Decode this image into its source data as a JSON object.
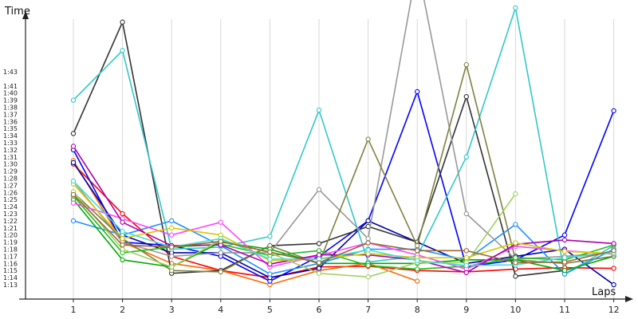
{
  "chart_data": {
    "type": "line",
    "xlabel": "Laps",
    "ylabel": "Time",
    "x": [
      1,
      2,
      3,
      4,
      5,
      6,
      7,
      8,
      9,
      10,
      11,
      12
    ],
    "y_tick_labels": [
      "1:13",
      "1:14",
      "1:15",
      "1:16",
      "1:17",
      "1:18",
      "1:19",
      "1:20",
      "1:21",
      "1:22",
      "1:23",
      "1:24",
      "1:25",
      "1:26",
      "1:27",
      "1:28",
      "1:29",
      "1:30",
      "1:31",
      "1:32",
      "1:33",
      "1:34",
      "1:35",
      "1:36",
      "1:37",
      "1:38",
      "1:39",
      "1:40",
      "1:41",
      "1:43"
    ],
    "ylim_seconds": [
      72,
      104
    ],
    "grid": {
      "vertical": true,
      "horizontal": false
    },
    "series": [
      {
        "color": "#ff0000",
        "values": [
          90,
          83,
          77,
          75,
          74,
          75.5,
          75.6,
          75,
          74.8,
          75.2,
          75.4,
          75.3
        ]
      },
      {
        "color": "#ff6600",
        "values": [
          90.5,
          79,
          76,
          75,
          73,
          75,
          76,
          73.5,
          null,
          null,
          null,
          null
        ]
      },
      {
        "color": "#0000ff",
        "values": [
          92,
          79,
          78.5,
          77,
          73.5,
          77,
          82,
          100.2,
          75.5,
          76.5,
          80,
          97.5
        ]
      },
      {
        "color": "#0000aa",
        "values": [
          90.2,
          80,
          77.5,
          77.5,
          74,
          75.3,
          82,
          79,
          76,
          77,
          78,
          73
        ]
      },
      {
        "color": "#333333",
        "values": [
          94.3,
          110,
          74.6,
          75,
          78.5,
          78.8,
          81.2,
          79,
          99.5,
          74.2,
          75,
          null
        ]
      },
      {
        "color": "#32c8c8",
        "values": [
          99,
          106,
          78,
          78.3,
          79.8,
          97.6,
          76.2,
          77,
          91,
          112,
          74.5,
          78.5
        ]
      },
      {
        "color": "#1e90ff",
        "values": [
          82,
          80,
          82,
          78.5,
          74.5,
          76,
          78,
          78,
          76.5,
          81.5,
          74.5,
          78
        ]
      },
      {
        "color": "#999999",
        "values": [
          87.6,
          79,
          77,
          77.5,
          77.5,
          86.4,
          79.5,
          118,
          83,
          76.6,
          77,
          77.5
        ]
      },
      {
        "color": "#808040",
        "values": [
          86,
          79.5,
          75,
          74.8,
          78.5,
          76,
          93.5,
          78.5,
          104,
          76.5,
          76,
          77
        ]
      },
      {
        "color": "#00aa00",
        "values": [
          85,
          76.5,
          75.5,
          79,
          78,
          76,
          76,
          76,
          76.5,
          76.5,
          75,
          77
        ]
      },
      {
        "color": "#22bb22",
        "values": [
          85.5,
          77.5,
          78.3,
          78.7,
          77.1,
          77.8,
          75.7,
          75.2,
          75.6,
          76.8,
          76.5,
          78.6
        ]
      },
      {
        "color": "#ff44ff",
        "values": [
          84.5,
          82.3,
          80,
          81.8,
          75.5,
          77.1,
          78.9,
          77.2,
          75.2,
          78.4,
          77.8,
          77.3
        ]
      },
      {
        "color": "#aa00aa",
        "values": [
          92.5,
          81.8,
          78.5,
          78.6,
          75.9,
          77.2,
          77.2,
          76.5,
          74.7,
          78.7,
          79.3,
          78.8
        ]
      },
      {
        "color": "#d4c800",
        "values": [
          87.2,
          79.5,
          81,
          80,
          76.4,
          76.6,
          77.4,
          76.8,
          76.8,
          78.9,
          77.7,
          77.4
        ]
      },
      {
        "color": "#a0d060",
        "values": [
          86.1,
          78,
          75.5,
          79.3,
          77.5,
          74.6,
          74.1,
          76.1,
          76.1,
          85.8,
          null,
          null
        ]
      },
      {
        "color": "#40e0d0",
        "values": [
          87.6,
          80.5,
          78.3,
          79.5,
          76.6,
          76.6,
          77.9,
          76.4,
          75.7,
          75.8,
          76.8,
          77.5
        ]
      },
      {
        "color": "#996633",
        "values": [
          85.7,
          78.6,
          78.3,
          79.1,
          77.6,
          76.1,
          78.9,
          77.8,
          77.8,
          76.1,
          76.2,
          77.8
        ]
      }
    ]
  }
}
